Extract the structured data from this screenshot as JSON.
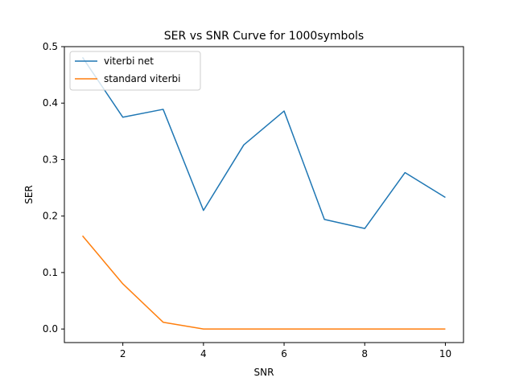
{
  "chart_data": {
    "type": "line",
    "title": "SER vs SNR Curve for 1000symbols",
    "xlabel": "SNR",
    "ylabel": "SER",
    "x": [
      1,
      2,
      3,
      4,
      5,
      6,
      7,
      8,
      9,
      10
    ],
    "series": [
      {
        "name": "viterbi net",
        "color": "#1f77b4",
        "values": [
          0.481,
          0.375,
          0.389,
          0.21,
          0.326,
          0.386,
          0.194,
          0.178,
          0.277,
          0.233
        ]
      },
      {
        "name": "standard viterbi",
        "color": "#ff7f0e",
        "values": [
          0.165,
          0.08,
          0.012,
          0.0,
          0.0,
          0.0,
          0.0,
          0.0,
          0.0,
          0.0
        ]
      }
    ],
    "xlim": [
      0.55,
      10.45
    ],
    "ylim": [
      -0.024,
      0.5
    ],
    "xticks": [
      2,
      4,
      6,
      8,
      10
    ],
    "yticks": [
      0.0,
      0.1,
      0.2,
      0.3,
      0.4,
      0.5
    ],
    "xtick_labels": [
      "2",
      "4",
      "6",
      "8",
      "10"
    ],
    "ytick_labels": [
      "0.0",
      "0.1",
      "0.2",
      "0.3",
      "0.4",
      "0.5"
    ],
    "grid": false,
    "legend_position": "top-left"
  }
}
